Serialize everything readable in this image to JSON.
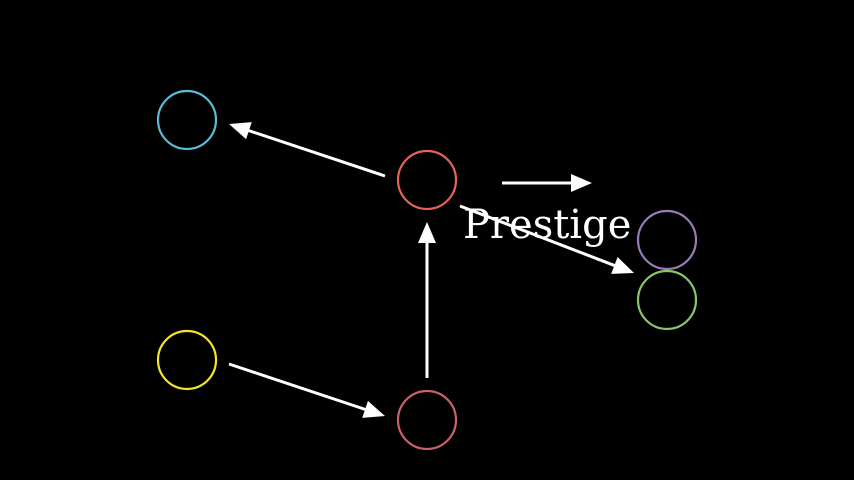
{
  "diagram": {
    "label": "Prestige",
    "nodes": [
      {
        "id": "cyan",
        "color": "#5bbcd6"
      },
      {
        "id": "red",
        "color": "#e8625a"
      },
      {
        "id": "yellow",
        "color": "#f2e62a"
      },
      {
        "id": "rose",
        "color": "#c8636a"
      },
      {
        "id": "purple",
        "color": "#9c7bb5"
      },
      {
        "id": "green",
        "color": "#8cc46a"
      }
    ],
    "edges": [
      {
        "from": "red",
        "to": "cyan"
      },
      {
        "from": "red",
        "to": "green"
      },
      {
        "from": "yellow",
        "to": "rose"
      },
      {
        "from": "rose",
        "to": "red"
      }
    ],
    "annotation_arrow": {
      "direction": "right"
    }
  }
}
